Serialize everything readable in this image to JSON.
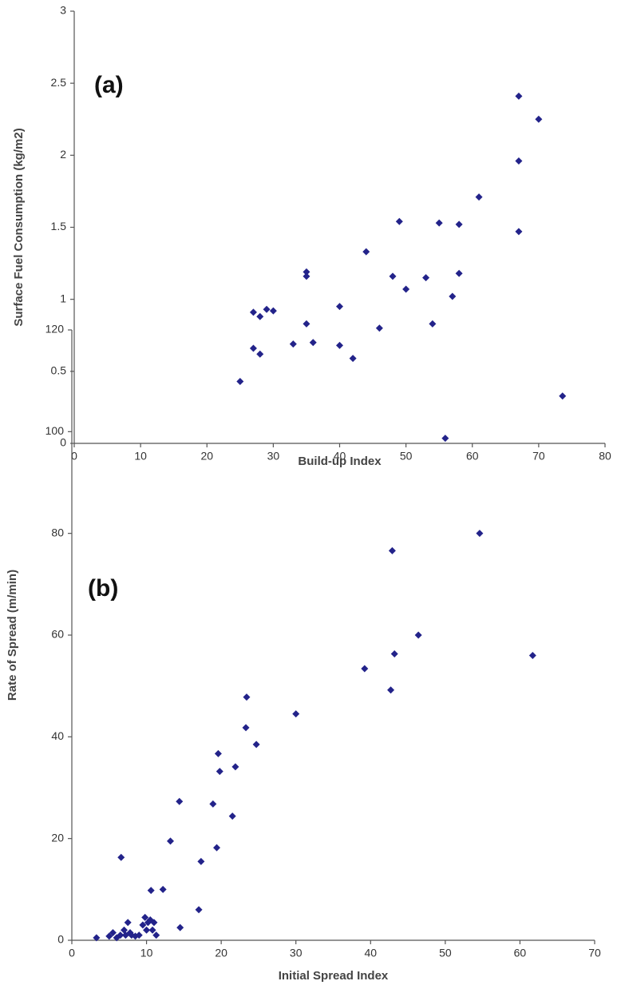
{
  "chart_data": [
    {
      "type": "scatter",
      "annotation": "(a)",
      "x_label": "Build-up Index",
      "y_label": "Surface Fuel Consumption (kg/m2)",
      "color": "#23238a",
      "x": [
        25,
        27,
        27,
        28,
        28,
        29,
        30,
        33,
        35,
        35,
        35,
        36,
        40,
        40,
        42,
        44,
        46,
        48,
        49,
        50,
        53,
        54,
        55,
        57,
        58,
        58,
        61,
        67,
        67,
        67,
        70
      ],
      "values": [
        0.43,
        0.91,
        0.66,
        0.88,
        0.62,
        0.93,
        0.92,
        0.69,
        1.19,
        1.16,
        0.83,
        0.7,
        0.95,
        0.68,
        0.59,
        1.33,
        0.8,
        1.16,
        1.54,
        1.07,
        1.15,
        0.83,
        1.53,
        1.02,
        1.52,
        1.18,
        1.71,
        2.41,
        1.96,
        1.47,
        2.25
      ],
      "xlim": [
        0,
        80
      ],
      "xticks": [
        0,
        10,
        20,
        30,
        40,
        50,
        60,
        70,
        80
      ],
      "ylim": [
        0,
        3
      ],
      "yticks": [
        0,
        0.5,
        1,
        1.5,
        2,
        2.5,
        3
      ]
    },
    {
      "type": "scatter",
      "annotation": "(b)",
      "x_label": "Initial Spread Index",
      "y_label": "Rate of Spread (m/min)",
      "color": "#23238a",
      "x": [
        3.3,
        5,
        5.5,
        6,
        6.5,
        6.6,
        7,
        7.2,
        7.5,
        7.8,
        8,
        8.5,
        9,
        9.5,
        9.8,
        10,
        10.2,
        10.5,
        10.6,
        10.8,
        11,
        11.3,
        12.2,
        13.2,
        14.4,
        14.5,
        17,
        17.3,
        18.9,
        19.4,
        19.6,
        19.8,
        21.5,
        21.9,
        23.3,
        23.4,
        24.7,
        30,
        39.2,
        42.7,
        42.9,
        43.2,
        46.4,
        50,
        54.6,
        61.7,
        65.7
      ],
      "values": [
        0.5,
        0.8,
        1.5,
        0.5,
        1,
        16.3,
        2,
        1,
        3.5,
        1.5,
        1,
        0.8,
        1,
        3,
        4.5,
        2,
        3.5,
        4,
        9.8,
        2,
        3.5,
        1,
        10,
        19.5,
        27.3,
        2.5,
        6,
        15.5,
        26.8,
        18.2,
        36.7,
        33.2,
        24.4,
        34.1,
        41.8,
        47.8,
        38.5,
        44.5,
        53.4,
        49.2,
        76.6,
        56.3,
        60,
        98.7,
        80,
        56,
        107
      ],
      "xlim": [
        0,
        70
      ],
      "xticks": [
        0,
        10,
        20,
        30,
        40,
        50,
        60,
        70
      ],
      "ylim": [
        0,
        120
      ],
      "yticks": [
        0,
        20,
        40,
        60,
        80,
        100,
        120
      ]
    }
  ]
}
